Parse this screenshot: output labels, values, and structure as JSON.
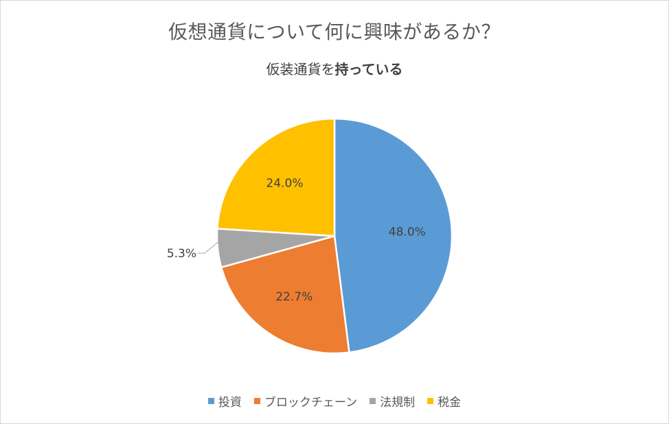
{
  "chart_data": {
    "type": "pie",
    "title": "仮想通貨について何に興味があるか？",
    "subtitle_prefix": "仮装通貨を",
    "subtitle_emphasis": "持っている",
    "legend_position": "bottom",
    "slices": [
      {
        "name": "投資",
        "value": 48.0,
        "label": "48.0%",
        "color": "#5b9bd5"
      },
      {
        "name": "ブロックチェーン",
        "value": 22.7,
        "label": "22.7%",
        "color": "#ed7d31"
      },
      {
        "name": "法規制",
        "value": 5.3,
        "label": "5.3%",
        "color": "#a5a5a5"
      },
      {
        "name": "税金",
        "value": 24.0,
        "label": "24.0%",
        "color": "#ffc000"
      }
    ]
  }
}
